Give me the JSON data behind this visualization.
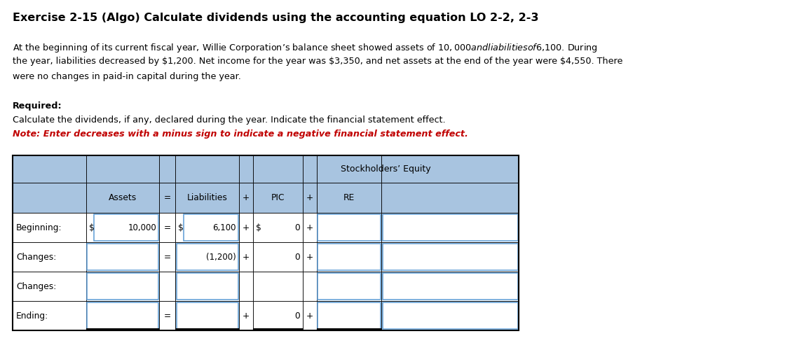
{
  "title": "Exercise 2-15 (Algo) Calculate dividends using the accounting equation LO 2-2, 2-3",
  "body_line1": "At the beginning of its current fiscal year, Willie Corporation’s balance sheet showed assets of $10,000 and liabilities of $6,100. During",
  "body_line2": "the year, liabilities decreased by $1,200. Net income for the year was $3,350, and net assets at the end of the year were $4,550. There",
  "body_line3": "were no changes in paid-in capital during the year.",
  "required_label": "Required:",
  "required_text": "Calculate the dividends, if any, declared during the year. Indicate the financial statement effect.",
  "note_text": "Note: Enter decreases with a minus sign to indicate a negative financial statement effect.",
  "se_header": "Stockholders’ Equity",
  "col_headers": [
    "",
    "Assets",
    "=",
    "Liabilities",
    "+",
    "PIC",
    "+",
    "RE",
    ""
  ],
  "header_bg": "#a8c4e0",
  "input_border": "#5b9bd5",
  "white": "#ffffff",
  "black": "#000000",
  "note_color": "#c00000",
  "row_data": [
    {
      "label": "Beginning:",
      "assets": "10,000",
      "show_assets_dollar": true,
      "eq": "=",
      "liab": "6,100",
      "show_liab_dollar": true,
      "plus1": "+",
      "show_pic_dollar": true,
      "pic_zero": "0",
      "plus2": "+",
      "re": "",
      "extra": ""
    },
    {
      "label": "Changes:",
      "assets": "",
      "show_assets_dollar": false,
      "eq": "=",
      "liab": "(1,200)",
      "show_liab_dollar": false,
      "plus1": "+",
      "show_pic_dollar": false,
      "pic_zero": "0",
      "plus2": "+",
      "re": "",
      "extra": ""
    },
    {
      "label": "Changes:",
      "assets": "",
      "show_assets_dollar": false,
      "eq": "",
      "liab": "",
      "show_liab_dollar": false,
      "plus1": "",
      "show_pic_dollar": false,
      "pic_zero": "",
      "plus2": "",
      "re": "",
      "extra": ""
    },
    {
      "label": "Ending:",
      "assets": "",
      "show_assets_dollar": false,
      "eq": "=",
      "liab": "",
      "show_liab_dollar": false,
      "plus1": "+",
      "show_pic_dollar": false,
      "pic_zero": "0",
      "plus2": "+",
      "re": "",
      "extra": ""
    }
  ]
}
